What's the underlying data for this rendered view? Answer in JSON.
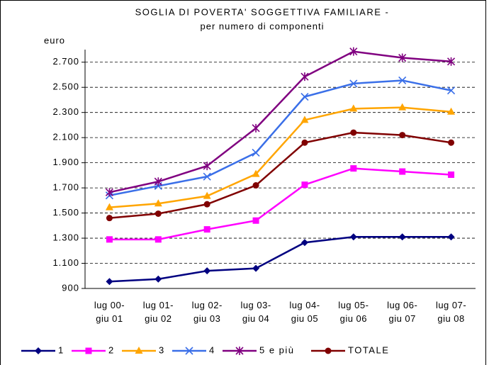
{
  "chart_data": {
    "type": "line",
    "title": "SOGLIA DI POVERTA' SOGGETTIVA FAMILIARE -",
    "subtitle": "per numero di componenti",
    "y_label": "euro",
    "categories": [
      "lug 00- giu 01",
      "lug 01- giu 02",
      "lug 02- giu 03",
      "lug 03- giu 04",
      "lug 04- giu 05",
      "lug 05- giu 06",
      "lug 06- giu 07",
      "lug 07- giu 08"
    ],
    "series": [
      {
        "name": "1",
        "color": "#000080",
        "marker": "diamond",
        "values": [
          955,
          975,
          1040,
          1060,
          1265,
          1310,
          1310,
          1310
        ]
      },
      {
        "name": "2",
        "color": "#ff00ff",
        "marker": "square",
        "values": [
          1290,
          1290,
          1370,
          1440,
          1725,
          1855,
          1830,
          1805
        ]
      },
      {
        "name": "3",
        "color": "#ffa500",
        "marker": "triangle",
        "values": [
          1545,
          1575,
          1635,
          1810,
          2240,
          2330,
          2340,
          2305
        ]
      },
      {
        "name": "4",
        "color": "#3a6fe8",
        "marker": "x",
        "values": [
          1640,
          1715,
          1790,
          1980,
          2425,
          2530,
          2555,
          2475
        ]
      },
      {
        "name": "5 e più",
        "color": "#800080",
        "marker": "star",
        "values": [
          1665,
          1750,
          1875,
          2175,
          2585,
          2785,
          2735,
          2705
        ]
      },
      {
        "name": "TOTALE",
        "color": "#800000",
        "marker": "circle",
        "values": [
          1460,
          1495,
          1570,
          1720,
          2060,
          2140,
          2120,
          2060
        ]
      }
    ],
    "ylim": [
      900,
      2800
    ],
    "yticks": [
      {
        "value": 900,
        "label": "900"
      },
      {
        "value": 1100,
        "label": "1.100"
      },
      {
        "value": 1300,
        "label": "1.300"
      },
      {
        "value": 1500,
        "label": "1.500"
      },
      {
        "value": 1700,
        "label": "1.700"
      },
      {
        "value": 1900,
        "label": "1.900"
      },
      {
        "value": 2100,
        "label": "2.100"
      },
      {
        "value": 2300,
        "label": "2.300"
      },
      {
        "value": 2500,
        "label": "2.500"
      },
      {
        "value": 2700,
        "label": "2.700"
      }
    ],
    "grid": true,
    "legend": "bottom"
  }
}
